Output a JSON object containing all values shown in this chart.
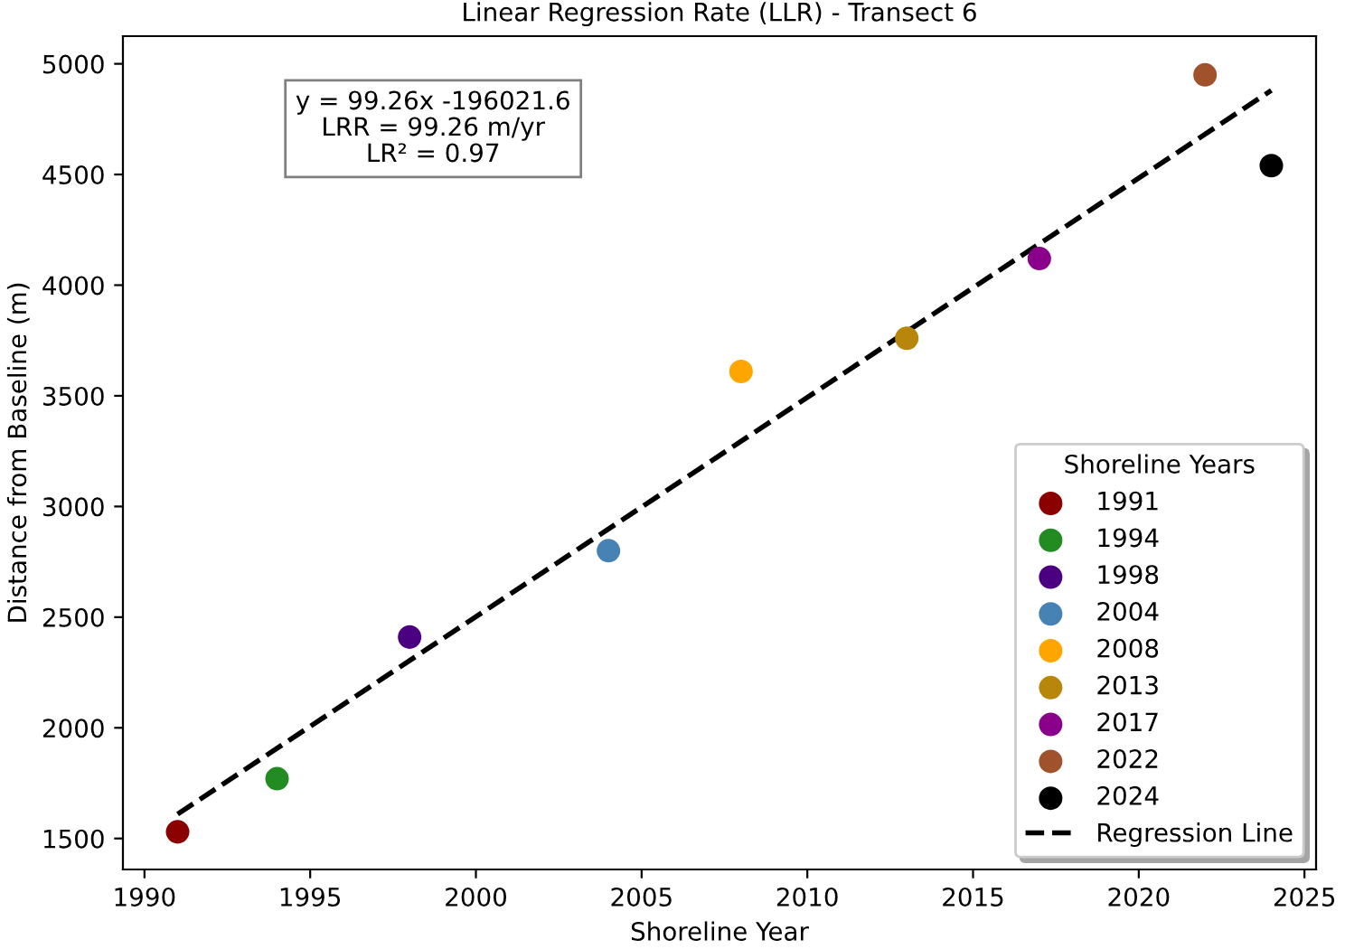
{
  "chart_data": {
    "type": "scatter",
    "title": "Linear Regression Rate (LLR) - Transect 6",
    "xlabel": "Shoreline Year",
    "ylabel": "Distance from Baseline (m)",
    "legend_title": "Shoreline Years",
    "series": [
      {
        "name": "1991",
        "color": "#8b0000",
        "x": [
          1991
        ],
        "values": [
          1530
        ]
      },
      {
        "name": "1994",
        "color": "#228b22",
        "x": [
          1994
        ],
        "values": [
          1770
        ]
      },
      {
        "name": "1998",
        "color": "#4b0082",
        "x": [
          1998
        ],
        "values": [
          2410
        ]
      },
      {
        "name": "2004",
        "color": "#4682b4",
        "x": [
          2004
        ],
        "values": [
          2800
        ]
      },
      {
        "name": "2008",
        "color": "#ffa500",
        "x": [
          2008
        ],
        "values": [
          3610
        ]
      },
      {
        "name": "2013",
        "color": "#b8860b",
        "x": [
          2013
        ],
        "values": [
          3760
        ]
      },
      {
        "name": "2017",
        "color": "#8b008b",
        "x": [
          2017
        ],
        "values": [
          4120
        ]
      },
      {
        "name": "2022",
        "color": "#a0522d",
        "x": [
          2022
        ],
        "values": [
          4950
        ]
      },
      {
        "name": "2024",
        "color": "#000000",
        "x": [
          2024
        ],
        "values": [
          4540
        ]
      },
      {
        "name": "Regression Line",
        "type": "line",
        "color": "#000000",
        "line_style": "dashed",
        "marker": "none",
        "x": [
          1991,
          2024
        ],
        "values": [
          1610,
          4880
        ]
      }
    ],
    "annotations": [
      "y = 99.26x -196021.6\nLRR = 99.26 m/yr\nLR² = 0.97"
    ],
    "xlim": [
      1989.35,
      2025.35
    ],
    "xticks": [
      1990,
      1995,
      2000,
      2005,
      2010,
      2015,
      2020,
      2025
    ],
    "ylim": [
      1360,
      5125
    ],
    "yticks": [
      1500,
      2000,
      2500,
      3000,
      3500,
      4000,
      4500,
      5000
    ],
    "marker": "circle",
    "grid": false,
    "legend": "bottom right"
  }
}
